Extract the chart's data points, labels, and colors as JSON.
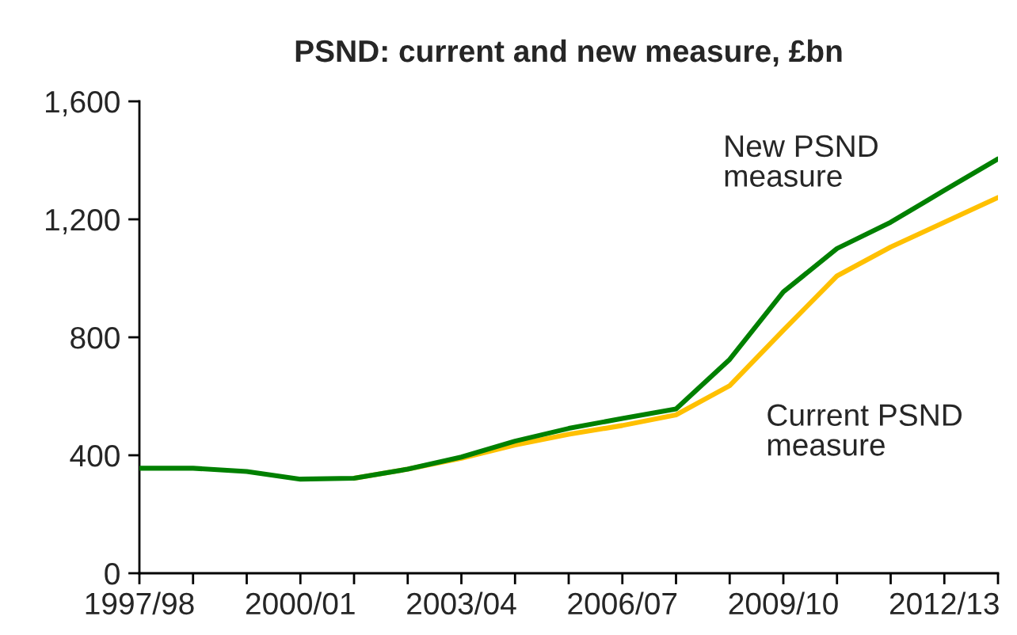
{
  "chart_data": {
    "type": "line",
    "title": "PSND: current and new measure, £bn",
    "categories": [
      "1997/98",
      null,
      null,
      "2000/01",
      null,
      null,
      "2003/04",
      null,
      null,
      "2006/07",
      null,
      null,
      "2009/10",
      null,
      null,
      "2012/13",
      null
    ],
    "series": [
      {
        "name": "New PSND measure",
        "color": "#008000",
        "values": [
          356,
          356,
          345,
          319,
          322,
          353,
          394,
          448,
          491,
          525,
          557,
          725,
          954,
          1101,
          1190,
          1298,
          1405
        ]
      },
      {
        "name": "Current PSND measure",
        "color": "#ffc000",
        "values": [
          null,
          null,
          null,
          null,
          322,
          353,
          390,
          435,
          471,
          501,
          537,
          636,
          824,
          1008,
          1106,
          1190,
          1274
        ]
      }
    ],
    "ylim": [
      0,
      1600
    ],
    "yticks": [
      0,
      400,
      800,
      {
        "value": 1200,
        "label": "1,200"
      },
      {
        "value": 1600,
        "label": "1,600"
      }
    ],
    "grid": false,
    "legend": false
  }
}
